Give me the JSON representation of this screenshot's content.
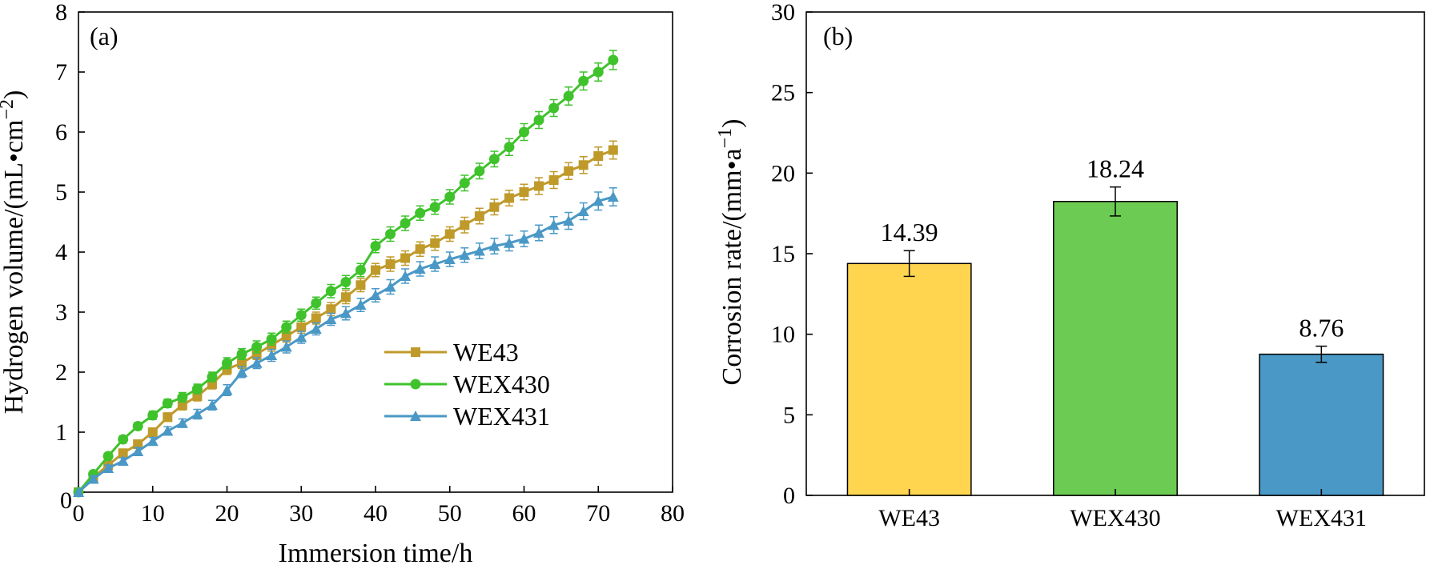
{
  "chart_data": [
    {
      "type": "line",
      "panel_label": "(a)",
      "xlabel": "Immersion time/h",
      "ylabel_main": "Hydrogen volume/(mL•cm",
      "ylabel_sup": "−2",
      "ylabel_close": ")",
      "xlim": [
        0,
        80
      ],
      "ylim": [
        0,
        8
      ],
      "xticks": [
        "0",
        "10",
        "20",
        "30",
        "40",
        "50",
        "60",
        "70",
        "80"
      ],
      "yticks": [
        "0",
        "1",
        "2",
        "3",
        "4",
        "5",
        "6",
        "7",
        "8"
      ],
      "legend_position": "lower-right",
      "x": [
        0,
        2,
        4,
        6,
        8,
        10,
        12,
        14,
        16,
        18,
        20,
        22,
        24,
        26,
        28,
        30,
        32,
        34,
        36,
        38,
        40,
        42,
        44,
        46,
        48,
        50,
        52,
        54,
        56,
        58,
        60,
        62,
        64,
        66,
        68,
        70,
        72
      ],
      "series": [
        {
          "name": "WE43",
          "color": "#BF9A2A",
          "marker": "square",
          "values": [
            0,
            0.25,
            0.45,
            0.65,
            0.8,
            1.0,
            1.25,
            1.45,
            1.6,
            1.8,
            2.05,
            2.15,
            2.3,
            2.45,
            2.6,
            2.75,
            2.9,
            3.05,
            3.25,
            3.45,
            3.7,
            3.8,
            3.9,
            4.05,
            4.15,
            4.3,
            4.45,
            4.6,
            4.75,
            4.9,
            5.0,
            5.1,
            5.2,
            5.35,
            5.45,
            5.6,
            5.7
          ],
          "error": [
            0,
            0.05,
            0.05,
            0.06,
            0.06,
            0.07,
            0.07,
            0.08,
            0.08,
            0.08,
            0.09,
            0.09,
            0.09,
            0.1,
            0.1,
            0.1,
            0.1,
            0.11,
            0.11,
            0.11,
            0.11,
            0.12,
            0.12,
            0.12,
            0.12,
            0.12,
            0.13,
            0.13,
            0.13,
            0.13,
            0.13,
            0.14,
            0.14,
            0.14,
            0.14,
            0.15,
            0.15
          ]
        },
        {
          "name": "WEX430",
          "color": "#3FC22C",
          "marker": "circle",
          "values": [
            0,
            0.3,
            0.6,
            0.88,
            1.1,
            1.28,
            1.48,
            1.58,
            1.72,
            1.92,
            2.15,
            2.3,
            2.42,
            2.55,
            2.75,
            2.95,
            3.15,
            3.35,
            3.5,
            3.7,
            4.1,
            4.3,
            4.48,
            4.65,
            4.75,
            4.92,
            5.15,
            5.35,
            5.55,
            5.75,
            6.0,
            6.2,
            6.4,
            6.6,
            6.85,
            7.0,
            7.2
          ],
          "error": [
            0,
            0.05,
            0.05,
            0.06,
            0.06,
            0.07,
            0.07,
            0.08,
            0.08,
            0.08,
            0.09,
            0.09,
            0.1,
            0.1,
            0.1,
            0.1,
            0.1,
            0.11,
            0.11,
            0.11,
            0.11,
            0.12,
            0.12,
            0.12,
            0.12,
            0.12,
            0.13,
            0.13,
            0.13,
            0.14,
            0.14,
            0.14,
            0.14,
            0.15,
            0.15,
            0.15,
            0.16
          ]
        },
        {
          "name": "WEX431",
          "color": "#4A98C6",
          "marker": "triangle",
          "values": [
            0,
            0.22,
            0.4,
            0.52,
            0.68,
            0.85,
            1.02,
            1.15,
            1.3,
            1.45,
            1.7,
            2.0,
            2.15,
            2.28,
            2.42,
            2.58,
            2.72,
            2.88,
            2.98,
            3.12,
            3.28,
            3.42,
            3.6,
            3.72,
            3.8,
            3.88,
            3.95,
            4.02,
            4.1,
            4.15,
            4.22,
            4.32,
            4.45,
            4.52,
            4.68,
            4.85,
            4.92
          ],
          "error": [
            0,
            0.05,
            0.05,
            0.05,
            0.06,
            0.06,
            0.07,
            0.07,
            0.08,
            0.08,
            0.09,
            0.09,
            0.09,
            0.1,
            0.1,
            0.1,
            0.1,
            0.1,
            0.11,
            0.11,
            0.11,
            0.12,
            0.12,
            0.12,
            0.12,
            0.12,
            0.12,
            0.13,
            0.13,
            0.13,
            0.13,
            0.13,
            0.14,
            0.14,
            0.14,
            0.15,
            0.15
          ]
        }
      ]
    },
    {
      "type": "bar",
      "panel_label": "(b)",
      "ylabel_main": "Corrosion rate/(mm•a",
      "ylabel_sup": "−1",
      "ylabel_close": ")",
      "ylim": [
        0,
        30
      ],
      "yticks": [
        "0",
        "5",
        "10",
        "15",
        "20",
        "25",
        "30"
      ],
      "categories": [
        "WE43",
        "WEX430",
        "WEX431"
      ],
      "values": [
        14.39,
        18.24,
        8.76
      ],
      "value_labels": [
        "14.39",
        "18.24",
        "8.76"
      ],
      "error": [
        0.8,
        0.9,
        0.5
      ],
      "colors": [
        "#FFD54F",
        "#6CCB53",
        "#4A98C6"
      ]
    }
  ]
}
